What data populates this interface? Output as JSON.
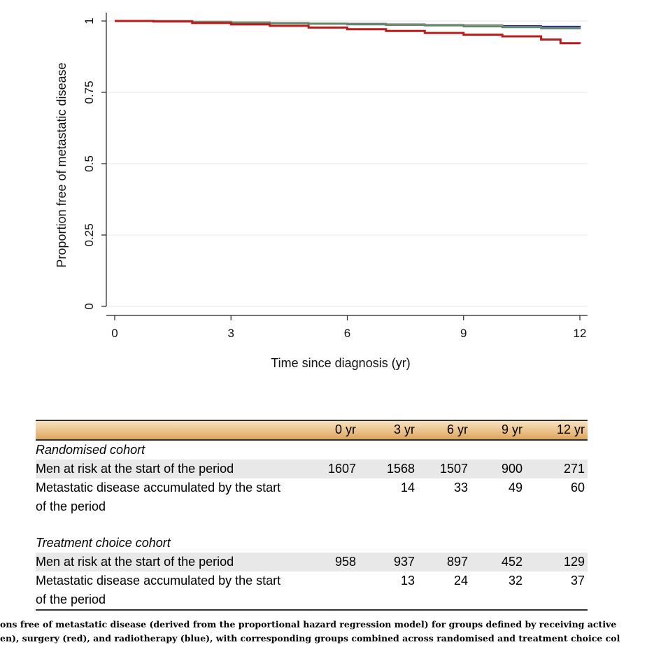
{
  "chart_data": {
    "type": "line",
    "xlabel": "Time since diagnosis (yr)",
    "ylabel": "Proportion free of metastatic disease",
    "xlim": [
      0,
      12
    ],
    "ylim": [
      0,
      1
    ],
    "x_ticks": [
      "0",
      "3",
      "6",
      "9",
      "12"
    ],
    "y_ticks": [
      "0",
      "0.25",
      "0.5",
      "0.75",
      "1"
    ],
    "grid": true,
    "series": [
      {
        "color": "#2a2f8f",
        "x": [
          0,
          1,
          2,
          3,
          4,
          5,
          6,
          7,
          8,
          9,
          10,
          11,
          12
        ],
        "y": [
          1,
          1,
          0.997,
          0.995,
          0.993,
          0.991,
          0.99,
          0.988,
          0.986,
          0.984,
          0.982,
          0.98,
          0.978
        ]
      },
      {
        "color": "#d9a050",
        "x": [
          0,
          1,
          2,
          3,
          4,
          5,
          6,
          7,
          8,
          9,
          10,
          11,
          12
        ],
        "y": [
          1,
          0.999,
          0.997,
          0.995,
          0.993,
          0.991,
          0.989,
          0.987,
          0.985,
          0.982,
          0.979,
          0.975,
          0.972
        ]
      },
      {
        "color": "#5a8a70",
        "x": [
          0,
          1,
          2,
          3,
          4,
          5,
          6,
          7,
          8,
          9,
          10,
          11,
          12
        ],
        "y": [
          1,
          0.999,
          0.996,
          0.994,
          0.992,
          0.99,
          0.988,
          0.986,
          0.984,
          0.981,
          0.978,
          0.974,
          0.971
        ]
      },
      {
        "color": "#b81c1c",
        "x": [
          0,
          1,
          2,
          3,
          4,
          5,
          6,
          7,
          8,
          9,
          10,
          11,
          11.5,
          12
        ],
        "y": [
          1,
          0.998,
          0.993,
          0.988,
          0.983,
          0.977,
          0.971,
          0.965,
          0.958,
          0.952,
          0.946,
          0.935,
          0.922,
          0.92
        ]
      }
    ]
  },
  "table": {
    "columns": [
      "0 yr",
      "3 yr",
      "6 yr",
      "9 yr",
      "12 yr"
    ],
    "cohort1": {
      "title": "Randomised cohort",
      "row1": {
        "label": "Men at risk at the start of the period",
        "values": [
          "1607",
          "1568",
          "1507",
          "900",
          "271"
        ]
      },
      "row2": {
        "label": "Metastatic disease accumulated by the start of the period",
        "values": [
          "",
          "14",
          "33",
          "49",
          "60"
        ]
      }
    },
    "cohort2": {
      "title": "Treatment choice cohort",
      "row1": {
        "label": "Men at risk at the start of the period",
        "values": [
          "958",
          "937",
          "897",
          "452",
          "129"
        ]
      },
      "row2": {
        "label": "Metastatic disease accumulated by the start of the period",
        "values": [
          "",
          "13",
          "24",
          "32",
          "37"
        ]
      }
    }
  },
  "caption": {
    "line1": "ons free of metastatic disease (derived from the proportional hazard regression model) for groups defined by receiving active",
    "line2": "en), surgery (red), and radiotherapy (blue), with corresponding groups combined across randomised and treatment choice col"
  }
}
